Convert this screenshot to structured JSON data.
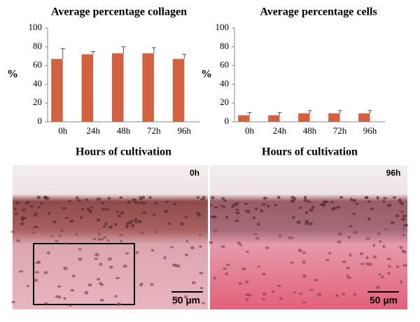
{
  "chart_data": [
    {
      "type": "bar",
      "title": "Average percentage collagen",
      "y_label": "%",
      "x_label": "Hours of cultivation",
      "categories": [
        "0h",
        "24h",
        "48h",
        "72h",
        "96h"
      ],
      "series": [
        {
          "color": "#d3603f",
          "values": [
            67,
            72,
            73,
            73,
            67
          ],
          "errors": [
            11,
            3,
            7,
            6,
            5
          ]
        }
      ],
      "ylim": [
        0,
        100
      ],
      "yticks": [
        0,
        20,
        40,
        60,
        80,
        100
      ]
    },
    {
      "type": "bar",
      "title": "Average percentage cells",
      "y_label": "%",
      "x_label": "Hours of cultivation",
      "categories": [
        "0h",
        "24h",
        "48h",
        "72h",
        "96h"
      ],
      "series": [
        {
          "color": "#d3603f",
          "values": [
            7,
            7,
            9,
            9,
            9
          ],
          "errors": [
            3,
            3,
            3,
            3,
            3
          ]
        }
      ],
      "ylim": [
        0,
        100
      ],
      "yticks": [
        0,
        20,
        40,
        60,
        80,
        100
      ]
    }
  ],
  "images": [
    {
      "label": "0h",
      "scale_bar": "50 µm"
    },
    {
      "label": "96h",
      "scale_bar": "50 µm"
    }
  ]
}
